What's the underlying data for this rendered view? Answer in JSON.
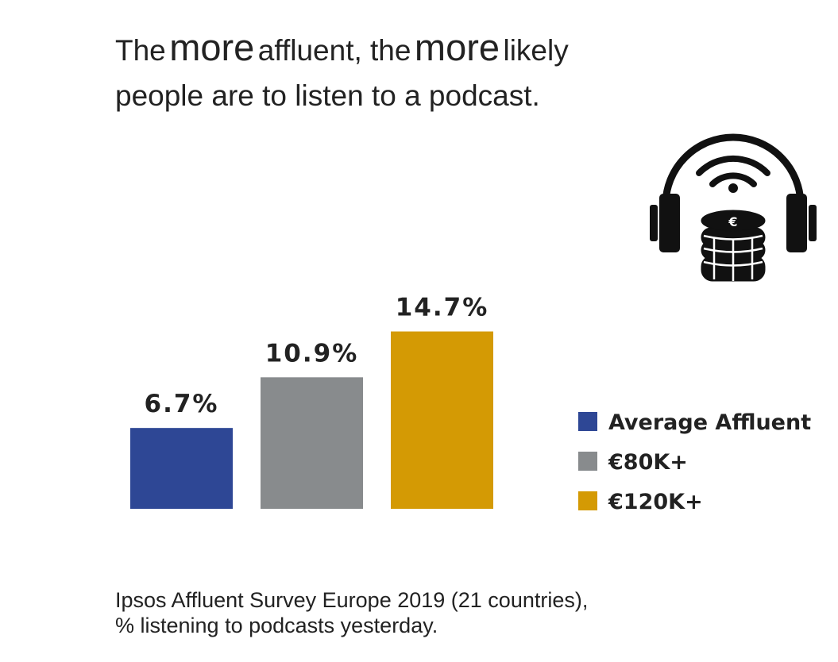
{
  "title": {
    "w1": "The",
    "w2": "more",
    "w3": "affluent, the",
    "w4": "more",
    "w5": "likely",
    "line2": "people are to listen to a podcast."
  },
  "icon": "podcast-headphones-coins-icon",
  "chart_data": {
    "type": "bar",
    "categories": [
      "Average Affluent",
      "€80K+",
      "€120K+"
    ],
    "values": [
      6.7,
      10.9,
      14.7
    ],
    "value_labels": [
      "6.7%",
      "10.9%",
      "14.7%"
    ],
    "colors": [
      "#2e4795",
      "#888b8d",
      "#d49a04"
    ],
    "ylim": [
      0,
      16
    ],
    "legend": [
      "Average Affluent",
      "€80K+",
      "€120K+"
    ],
    "legend_position": "right",
    "grid": false
  },
  "source": {
    "line1": "Ipsos Affluent Survey Europe 2019 (21 countries),",
    "line2": "% listening to podcasts yesterday."
  }
}
